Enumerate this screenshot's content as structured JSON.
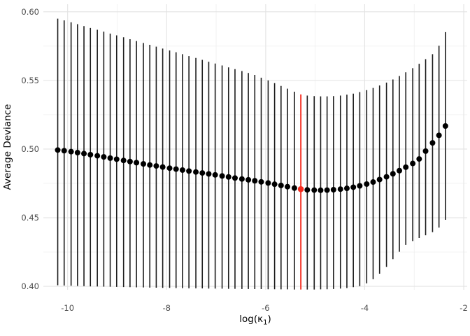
{
  "chart_data": {
    "type": "scatter",
    "title": "",
    "ylabel": "Average Deviance",
    "xlabel_parts": [
      "log(κ",
      "1",
      ")"
    ],
    "x_ticks": [
      -10,
      -8,
      -6,
      -4,
      -2
    ],
    "x_tick_labels": [
      "-10",
      "-8",
      "-6",
      "-4",
      "-2"
    ],
    "x_minor_ticks": [
      -9,
      -7,
      -5,
      -3
    ],
    "y_ticks": [
      0.4,
      0.45,
      0.5,
      0.55,
      0.6
    ],
    "y_tick_labels": [
      "0.40",
      "0.45",
      "0.50",
      "0.55",
      "0.60"
    ],
    "y_minor_ticks": [
      0.425,
      0.475,
      0.525,
      0.575
    ],
    "xlim": [
      -10.49,
      -1.93
    ],
    "ylim": [
      0.3975,
      0.6055
    ],
    "grid": true,
    "legend": false,
    "highlight_index": 37,
    "highlight_x": -5.29,
    "highlight_y": 0.4708,
    "colors": {
      "point": "#000000",
      "errorbar": "#1c1c1c",
      "highlight": "#f52b1e",
      "grid_major": "#e3e3e3",
      "grid_minor": "#f0f0f0",
      "tick_label": "#4d4d4d",
      "axis_title": "#000000",
      "background": "#ffffff"
    },
    "series": [
      {
        "name": "average deviance with error bars",
        "x": [
          -10.2,
          -10.07,
          -9.93,
          -9.8,
          -9.67,
          -9.54,
          -9.4,
          -9.27,
          -9.14,
          -9.01,
          -8.87,
          -8.74,
          -8.61,
          -8.47,
          -8.34,
          -8.21,
          -8.08,
          -7.94,
          -7.81,
          -7.68,
          -7.55,
          -7.41,
          -7.28,
          -7.15,
          -7.02,
          -6.88,
          -6.75,
          -6.62,
          -6.48,
          -6.35,
          -6.22,
          -6.09,
          -5.95,
          -5.82,
          -5.69,
          -5.56,
          -5.42,
          -5.29,
          -5.16,
          -5.02,
          -4.89,
          -4.76,
          -4.63,
          -4.49,
          -4.36,
          -4.23,
          -4.1,
          -3.96,
          -3.83,
          -3.7,
          -3.56,
          -3.43,
          -3.3,
          -3.17,
          -3.03,
          -2.9,
          -2.77,
          -2.63,
          -2.5,
          -2.37
        ],
        "y": [
          0.4993,
          0.4988,
          0.4981,
          0.4974,
          0.4967,
          0.4959,
          0.4951,
          0.4943,
          0.4934,
          0.4926,
          0.4917,
          0.4909,
          0.4901,
          0.4892,
          0.4884,
          0.4877,
          0.4869,
          0.4861,
          0.4854,
          0.4847,
          0.484,
          0.4833,
          0.4826,
          0.4819,
          0.4812,
          0.4804,
          0.4797,
          0.4789,
          0.4782,
          0.4776,
          0.4769,
          0.4761,
          0.4753,
          0.4744,
          0.4735,
          0.4726,
          0.4716,
          0.4708,
          0.4703,
          0.4701,
          0.47,
          0.4701,
          0.4704,
          0.4708,
          0.4714,
          0.4722,
          0.4732,
          0.4745,
          0.476,
          0.4778,
          0.4798,
          0.482,
          0.4843,
          0.4868,
          0.4895,
          0.4928,
          0.4985,
          0.5045,
          0.51,
          0.5168
        ],
        "y_upper": [
          0.595,
          0.5937,
          0.5923,
          0.591,
          0.5896,
          0.5882,
          0.5869,
          0.5855,
          0.5841,
          0.5828,
          0.5814,
          0.58,
          0.5787,
          0.5773,
          0.5759,
          0.5746,
          0.5732,
          0.5718,
          0.5705,
          0.5691,
          0.5677,
          0.5664,
          0.565,
          0.5636,
          0.5623,
          0.5609,
          0.5595,
          0.5582,
          0.5568,
          0.5554,
          0.554,
          0.552,
          0.55,
          0.548,
          0.546,
          0.544,
          0.5418,
          0.5398,
          0.539,
          0.5386,
          0.5384,
          0.5384,
          0.5386,
          0.539,
          0.5396,
          0.5404,
          0.5415,
          0.5429,
          0.5445,
          0.5463,
          0.5484,
          0.5507,
          0.5532,
          0.5559,
          0.5589,
          0.5621,
          0.5655,
          0.5691,
          0.5752,
          0.5852
        ],
        "y_lower": [
          0.4008,
          0.4006,
          0.4005,
          0.4003,
          0.4002,
          0.4,
          0.3999,
          0.3998,
          0.3997,
          0.3996,
          0.3995,
          0.3994,
          0.3993,
          0.3992,
          0.3991,
          0.399,
          0.3989,
          0.3989,
          0.3988,
          0.3987,
          0.3986,
          0.3986,
          0.3985,
          0.3984,
          0.3984,
          0.3983,
          0.3982,
          0.3982,
          0.3981,
          0.3981,
          0.398,
          0.398,
          0.3979,
          0.3979,
          0.3978,
          0.3978,
          0.3977,
          0.3977,
          0.3977,
          0.3977,
          0.3978,
          0.3979,
          0.3981,
          0.3984,
          0.3988,
          0.3994,
          0.4002,
          0.4022,
          0.4052,
          0.4092,
          0.4142,
          0.4198,
          0.4252,
          0.4302,
          0.433,
          0.4352,
          0.4372,
          0.4395,
          0.4428,
          0.4485
        ]
      }
    ]
  }
}
